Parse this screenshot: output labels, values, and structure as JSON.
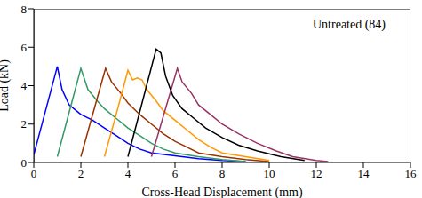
{
  "chart_data": {
    "type": "line",
    "x_label": "Cross-Head Displacement (mm)",
    "y_label": "Load (kN)",
    "annotations": [
      {
        "text": "Untreated (84)"
      }
    ],
    "xlim": [
      0,
      16
    ],
    "xticks": [
      0,
      2,
      4,
      6,
      8,
      10,
      12,
      14,
      16
    ],
    "ylim": [
      0,
      8
    ],
    "yticks": [
      0,
      2,
      4,
      6,
      8
    ],
    "grid": false,
    "series": [
      {
        "color": "#0000ff",
        "x": [
          0,
          0.5,
          1.0,
          1.2,
          1.5,
          2,
          2.5,
          3,
          3.5,
          4,
          4.5,
          5,
          6,
          7,
          8,
          9
        ],
        "values": [
          0.4,
          2.7,
          5.0,
          3.8,
          3.0,
          2.5,
          2.2,
          1.8,
          1.4,
          1.0,
          0.7,
          0.5,
          0.35,
          0.2,
          0.1,
          0.05
        ]
      },
      {
        "color": "#339966",
        "x": [
          1.0,
          1.5,
          2.0,
          2.3,
          2.7,
          3,
          3.5,
          4,
          4.5,
          5,
          5.5,
          6,
          7,
          8,
          9
        ],
        "values": [
          0.3,
          2.6,
          4.9,
          3.8,
          3.2,
          2.8,
          2.3,
          1.8,
          1.4,
          1.0,
          0.7,
          0.5,
          0.3,
          0.15,
          0.05
        ]
      },
      {
        "color": "#993300",
        "x": [
          2.0,
          2.5,
          3.05,
          3.3,
          3.7,
          4,
          4.5,
          5,
          5.5,
          6,
          6.5,
          7,
          8,
          9,
          10
        ],
        "values": [
          0.3,
          2.5,
          4.9,
          4.2,
          3.6,
          3.1,
          2.5,
          2.0,
          1.5,
          1.1,
          0.8,
          0.5,
          0.3,
          0.15,
          0.05
        ]
      },
      {
        "color": "#ff9900",
        "x": [
          3.0,
          3.5,
          4.0,
          4.2,
          4.4,
          4.6,
          4.8,
          5.2,
          5.5,
          6,
          6.5,
          7,
          7.5,
          8,
          9,
          10
        ],
        "values": [
          0.3,
          2.5,
          4.8,
          4.3,
          4.4,
          4.3,
          3.8,
          3.2,
          2.7,
          2.2,
          1.7,
          1.2,
          0.8,
          0.5,
          0.3,
          0.1
        ]
      },
      {
        "color": "#000000",
        "x": [
          4.0,
          4.6,
          5.2,
          5.4,
          5.6,
          5.9,
          6.3,
          6.8,
          7.3,
          8,
          8.7,
          9.5,
          10.5,
          11.5
        ],
        "values": [
          0.3,
          3.1,
          5.9,
          5.7,
          4.5,
          3.5,
          2.8,
          2.3,
          1.8,
          1.3,
          0.9,
          0.6,
          0.3,
          0.1
        ]
      },
      {
        "color": "#993366",
        "x": [
          5.0,
          5.55,
          6.1,
          6.3,
          6.7,
          7,
          7.5,
          8,
          8.7,
          9.5,
          10.3,
          11,
          12,
          12.5
        ],
        "values": [
          0.3,
          2.6,
          4.9,
          4.2,
          3.6,
          3.0,
          2.5,
          2.0,
          1.5,
          1.0,
          0.6,
          0.3,
          0.1,
          0.05
        ]
      }
    ]
  }
}
